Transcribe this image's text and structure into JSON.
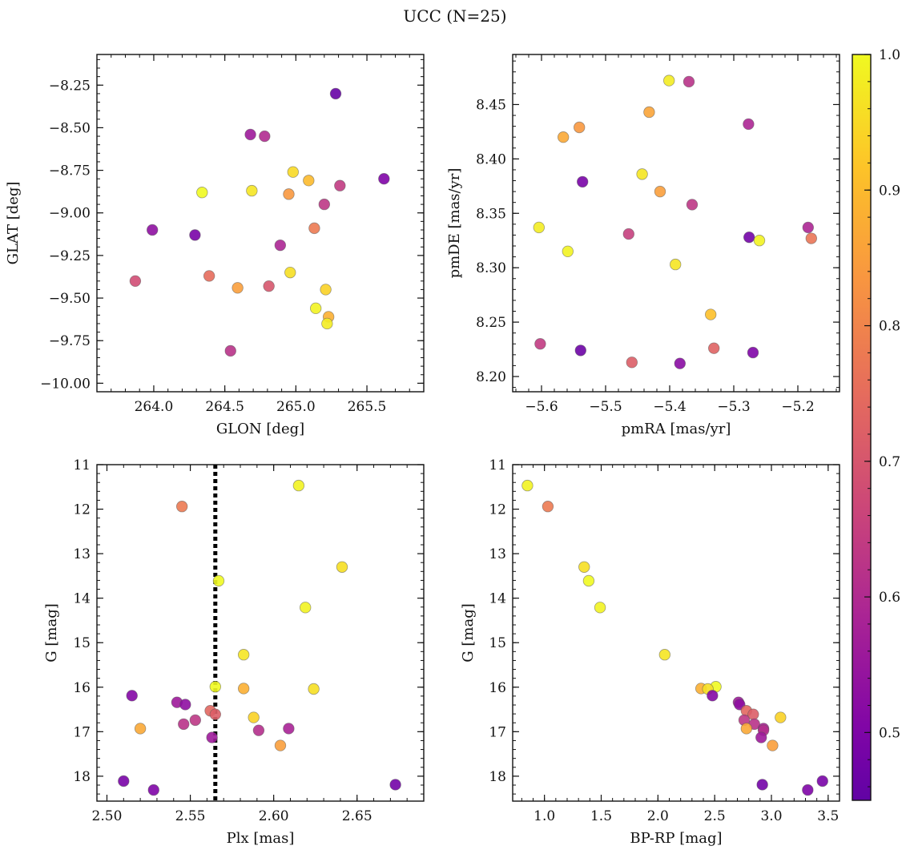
{
  "figure": {
    "title": "UCC (N=25)"
  },
  "colorbar": {
    "min": 0.45,
    "max": 1.0,
    "ticks": [
      "0.5",
      "0.6",
      "0.7",
      "0.8",
      "0.9",
      "1.0"
    ],
    "tick_values": [
      0.5,
      0.6,
      0.7,
      0.8,
      0.9,
      1.0
    ],
    "colormap": "plasma"
  },
  "chart_data": [
    {
      "type": "scatter",
      "xlabel": "GLON [deg]",
      "ylabel": "GLAT [deg]",
      "xlim": [
        263.6,
        265.9
      ],
      "ylim": [
        -10.05,
        -8.07
      ],
      "invert_y": false,
      "xticks": [
        264.0,
        264.5,
        265.0,
        265.5
      ],
      "xtick_labels": [
        "264.0",
        "264.5",
        "265.0",
        "265.5"
      ],
      "yticks": [
        -10.0,
        -9.75,
        -9.5,
        -9.25,
        -9.0,
        -8.75,
        -8.5,
        -8.25
      ],
      "ytick_labels": [
        "−10.00",
        "−9.75",
        "−9.50",
        "−9.25",
        "−9.00",
        "−8.75",
        "−8.50",
        "−8.25"
      ],
      "points": [
        {
          "x": 265.28,
          "y": -8.3,
          "c": 0.46
        },
        {
          "x": 264.68,
          "y": -8.54,
          "c": 0.56
        },
        {
          "x": 264.78,
          "y": -8.55,
          "c": 0.6
        },
        {
          "x": 264.98,
          "y": -8.76,
          "c": 0.95
        },
        {
          "x": 265.09,
          "y": -8.81,
          "c": 0.9
        },
        {
          "x": 265.62,
          "y": -8.8,
          "c": 0.5
        },
        {
          "x": 264.34,
          "y": -8.88,
          "c": 1.0
        },
        {
          "x": 264.69,
          "y": -8.87,
          "c": 0.97
        },
        {
          "x": 265.31,
          "y": -8.84,
          "c": 0.64
        },
        {
          "x": 264.95,
          "y": -8.89,
          "c": 0.84
        },
        {
          "x": 265.2,
          "y": -8.95,
          "c": 0.63
        },
        {
          "x": 265.13,
          "y": -9.09,
          "c": 0.78
        },
        {
          "x": 263.99,
          "y": -9.1,
          "c": 0.53
        },
        {
          "x": 264.29,
          "y": -9.13,
          "c": 0.49
        },
        {
          "x": 264.89,
          "y": -9.19,
          "c": 0.59
        },
        {
          "x": 264.39,
          "y": -9.37,
          "c": 0.75
        },
        {
          "x": 264.96,
          "y": -9.35,
          "c": 0.96
        },
        {
          "x": 263.87,
          "y": -9.4,
          "c": 0.68
        },
        {
          "x": 264.59,
          "y": -9.44,
          "c": 0.85
        },
        {
          "x": 264.81,
          "y": -9.43,
          "c": 0.7
        },
        {
          "x": 265.21,
          "y": -9.45,
          "c": 0.94
        },
        {
          "x": 265.14,
          "y": -9.56,
          "c": 0.99
        },
        {
          "x": 265.23,
          "y": -9.61,
          "c": 0.88
        },
        {
          "x": 265.22,
          "y": -9.65,
          "c": 0.98
        },
        {
          "x": 264.54,
          "y": -9.81,
          "c": 0.62
        }
      ]
    },
    {
      "type": "scatter",
      "xlabel": "pmRA [mas/yr]",
      "ylabel": "pmDE [mas/yr]",
      "xlim": [
        -5.645,
        -5.135
      ],
      "ylim": [
        8.186,
        8.496
      ],
      "invert_y": false,
      "xticks": [
        -5.6,
        -5.5,
        -5.4,
        -5.3,
        -5.2
      ],
      "xtick_labels": [
        "−5.6",
        "−5.5",
        "−5.4",
        "−5.3",
        "−5.2"
      ],
      "yticks": [
        8.2,
        8.25,
        8.3,
        8.35,
        8.4,
        8.45
      ],
      "ytick_labels": [
        "8.20",
        "8.25",
        "8.30",
        "8.35",
        "8.40",
        "8.45"
      ],
      "points": [
        {
          "x": -5.401,
          "y": 8.472,
          "c": 0.98
        },
        {
          "x": -5.37,
          "y": 8.471,
          "c": 0.62
        },
        {
          "x": -5.432,
          "y": 8.443,
          "c": 0.86
        },
        {
          "x": -5.541,
          "y": 8.429,
          "c": 0.84
        },
        {
          "x": -5.566,
          "y": 8.42,
          "c": 0.87
        },
        {
          "x": -5.277,
          "y": 8.432,
          "c": 0.59
        },
        {
          "x": -5.443,
          "y": 8.386,
          "c": 0.97
        },
        {
          "x": -5.536,
          "y": 8.379,
          "c": 0.49
        },
        {
          "x": -5.415,
          "y": 8.37,
          "c": 0.85
        },
        {
          "x": -5.365,
          "y": 8.358,
          "c": 0.63
        },
        {
          "x": -5.604,
          "y": 8.337,
          "c": 0.98
        },
        {
          "x": -5.184,
          "y": 8.337,
          "c": 0.59
        },
        {
          "x": -5.464,
          "y": 8.331,
          "c": 0.65
        },
        {
          "x": -5.276,
          "y": 8.328,
          "c": 0.48
        },
        {
          "x": -5.179,
          "y": 8.327,
          "c": 0.77
        },
        {
          "x": -5.26,
          "y": 8.325,
          "c": 0.99
        },
        {
          "x": -5.559,
          "y": 8.315,
          "c": 0.99
        },
        {
          "x": -5.391,
          "y": 8.303,
          "c": 0.97
        },
        {
          "x": -5.336,
          "y": 8.257,
          "c": 0.91
        },
        {
          "x": -5.602,
          "y": 8.23,
          "c": 0.64
        },
        {
          "x": -5.331,
          "y": 8.226,
          "c": 0.73
        },
        {
          "x": -5.539,
          "y": 8.224,
          "c": 0.47
        },
        {
          "x": -5.27,
          "y": 8.222,
          "c": 0.5
        },
        {
          "x": -5.459,
          "y": 8.213,
          "c": 0.72
        },
        {
          "x": -5.384,
          "y": 8.212,
          "c": 0.52
        }
      ]
    },
    {
      "type": "scatter",
      "xlabel": "Plx [mas]",
      "ylabel": "G [mag]",
      "xlim": [
        2.494,
        2.69
      ],
      "ylim": [
        11.0,
        18.56
      ],
      "invert_y": true,
      "vline": 2.565,
      "xticks": [
        2.5,
        2.55,
        2.6,
        2.65
      ],
      "xtick_labels": [
        "2.50",
        "2.55",
        "2.60",
        "2.65"
      ],
      "yticks": [
        11,
        12,
        13,
        14,
        15,
        16,
        17,
        18
      ],
      "ytick_labels": [
        "11",
        "12",
        "13",
        "14",
        "15",
        "16",
        "17",
        "18"
      ],
      "points": [
        {
          "x": 2.615,
          "y": 11.47,
          "c": 0.99
        },
        {
          "x": 2.545,
          "y": 11.94,
          "c": 0.78
        },
        {
          "x": 2.641,
          "y": 13.3,
          "c": 0.96
        },
        {
          "x": 2.567,
          "y": 13.61,
          "c": 1.0
        },
        {
          "x": 2.619,
          "y": 14.21,
          "c": 0.99
        },
        {
          "x": 2.582,
          "y": 15.27,
          "c": 0.97
        },
        {
          "x": 2.565,
          "y": 15.99,
          "c": 1.0
        },
        {
          "x": 2.582,
          "y": 16.03,
          "c": 0.88
        },
        {
          "x": 2.624,
          "y": 16.04,
          "c": 0.96
        },
        {
          "x": 2.515,
          "y": 16.19,
          "c": 0.51
        },
        {
          "x": 2.542,
          "y": 16.34,
          "c": 0.56
        },
        {
          "x": 2.547,
          "y": 16.39,
          "c": 0.53
        },
        {
          "x": 2.562,
          "y": 16.53,
          "c": 0.74
        },
        {
          "x": 2.565,
          "y": 16.61,
          "c": 0.72
        },
        {
          "x": 2.588,
          "y": 16.68,
          "c": 0.94
        },
        {
          "x": 2.553,
          "y": 16.74,
          "c": 0.63
        },
        {
          "x": 2.546,
          "y": 16.83,
          "c": 0.62
        },
        {
          "x": 2.52,
          "y": 16.93,
          "c": 0.87
        },
        {
          "x": 2.609,
          "y": 16.93,
          "c": 0.58
        },
        {
          "x": 2.591,
          "y": 16.97,
          "c": 0.61
        },
        {
          "x": 2.563,
          "y": 17.13,
          "c": 0.56
        },
        {
          "x": 2.604,
          "y": 17.31,
          "c": 0.85
        },
        {
          "x": 2.51,
          "y": 18.11,
          "c": 0.49
        },
        {
          "x": 2.673,
          "y": 18.19,
          "c": 0.48
        },
        {
          "x": 2.528,
          "y": 18.31,
          "c": 0.5
        }
      ]
    },
    {
      "type": "scatter",
      "xlabel": "BP-RP [mag]",
      "ylabel": "G [mag]",
      "xlim": [
        0.72,
        3.6
      ],
      "ylim": [
        11.0,
        18.56
      ],
      "invert_y": true,
      "xticks": [
        1.0,
        1.5,
        2.0,
        2.5,
        3.0,
        3.5
      ],
      "xtick_labels": [
        "1.0",
        "1.5",
        "2.0",
        "2.5",
        "3.0",
        "3.5"
      ],
      "yticks": [
        11,
        12,
        13,
        14,
        15,
        16,
        17,
        18
      ],
      "ytick_labels": [
        "11",
        "12",
        "13",
        "14",
        "15",
        "16",
        "17",
        "18"
      ],
      "points": [
        {
          "x": 0.85,
          "y": 11.47,
          "c": 0.99
        },
        {
          "x": 1.03,
          "y": 11.94,
          "c": 0.78
        },
        {
          "x": 1.35,
          "y": 13.3,
          "c": 0.96
        },
        {
          "x": 1.39,
          "y": 13.61,
          "c": 1.0
        },
        {
          "x": 1.49,
          "y": 14.21,
          "c": 0.99
        },
        {
          "x": 2.06,
          "y": 15.27,
          "c": 0.97
        },
        {
          "x": 2.51,
          "y": 15.99,
          "c": 1.0
        },
        {
          "x": 2.38,
          "y": 16.03,
          "c": 0.88
        },
        {
          "x": 2.44,
          "y": 16.04,
          "c": 0.96
        },
        {
          "x": 2.48,
          "y": 16.19,
          "c": 0.51
        },
        {
          "x": 2.71,
          "y": 16.34,
          "c": 0.56
        },
        {
          "x": 2.72,
          "y": 16.39,
          "c": 0.53
        },
        {
          "x": 2.78,
          "y": 16.53,
          "c": 0.74
        },
        {
          "x": 2.84,
          "y": 16.61,
          "c": 0.72
        },
        {
          "x": 3.08,
          "y": 16.68,
          "c": 0.94
        },
        {
          "x": 2.76,
          "y": 16.74,
          "c": 0.63
        },
        {
          "x": 2.85,
          "y": 16.83,
          "c": 0.62
        },
        {
          "x": 2.78,
          "y": 16.93,
          "c": 0.87
        },
        {
          "x": 2.93,
          "y": 16.93,
          "c": 0.58
        },
        {
          "x": 2.93,
          "y": 16.97,
          "c": 0.61
        },
        {
          "x": 2.91,
          "y": 17.13,
          "c": 0.56
        },
        {
          "x": 3.01,
          "y": 17.31,
          "c": 0.85
        },
        {
          "x": 3.45,
          "y": 18.11,
          "c": 0.49
        },
        {
          "x": 2.92,
          "y": 18.19,
          "c": 0.48
        },
        {
          "x": 3.32,
          "y": 18.31,
          "c": 0.5
        }
      ]
    }
  ]
}
